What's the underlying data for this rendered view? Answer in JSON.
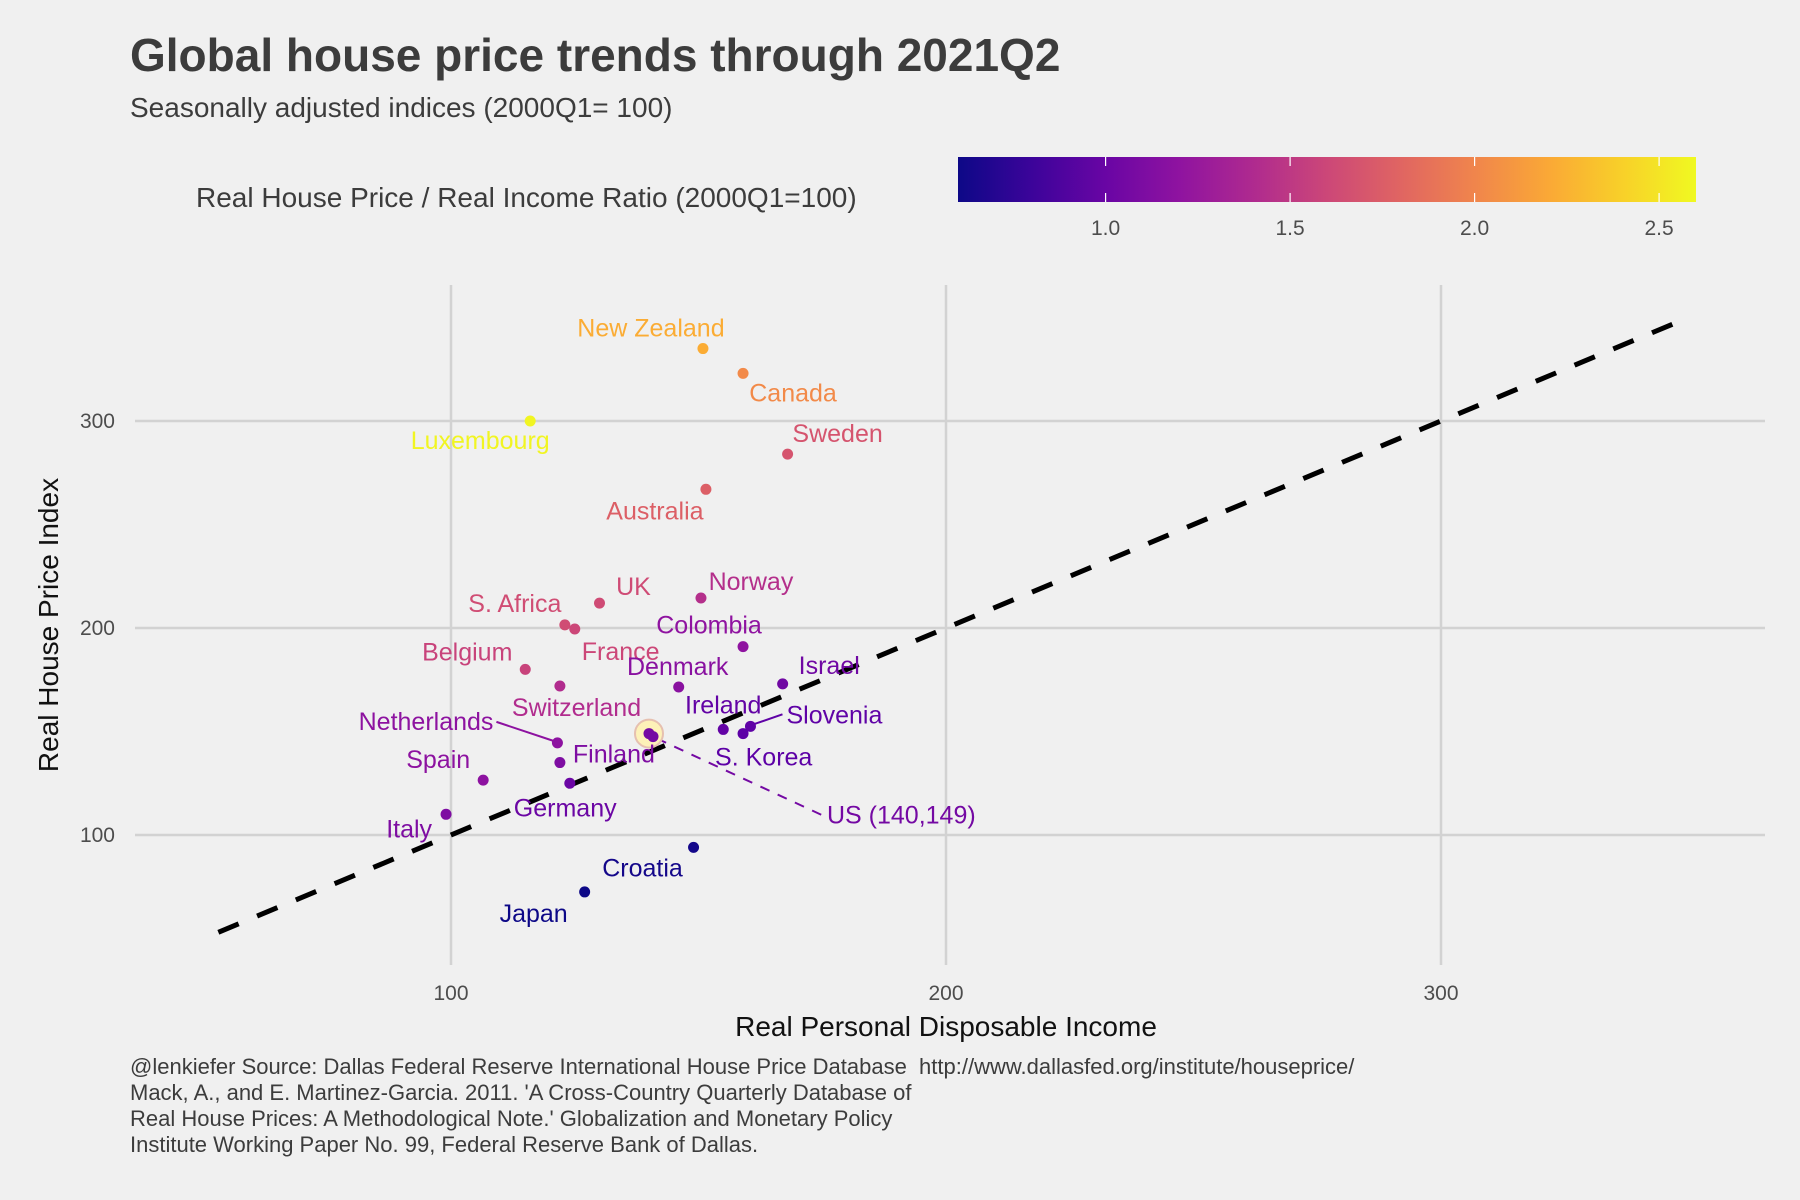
{
  "title": "Global house price trends through 2021Q2",
  "subtitle": "Seasonally adjusted indices (2000Q1= 100)",
  "caption": [
    "@lenkiefer Source: Dallas Federal Reserve International House Price Database  http://www.dallasfed.org/institute/houseprice/",
    "Mack, A., and E. Martinez-Garcia. 2011. 'A Cross-Country Quarterly Database of",
    "Real House Prices: A Methodological Note.' Globalization and Monetary Policy",
    "Institute Working Paper No. 99, Federal Reserve Bank of Dallas."
  ],
  "chart_data": {
    "type": "scatter",
    "title": "Global house price trends through 2021Q2",
    "subtitle": "Seasonally adjusted indices (2000Q1= 100)",
    "xlabel": "Real Personal Disposable Income",
    "ylabel": "Real House Price Index",
    "xlim": [
      35,
      355
    ],
    "ylim": [
      35,
      347
    ],
    "xticks": [
      100,
      200,
      300
    ],
    "yticks": [
      100,
      200,
      300
    ],
    "grid": true,
    "reference_line": {
      "type": "y=x",
      "style": "dashed",
      "color": "#000000",
      "range": [
        53,
        347
      ]
    },
    "color_scale": {
      "title": "Real House Price / Real Income Ratio (2000Q1=100)",
      "palette": "plasma",
      "range": [
        0.6,
        2.6
      ],
      "ticks": [
        1.0,
        1.5,
        2.0,
        2.5
      ],
      "tick_labels": [
        "1.0",
        "1.5",
        "2.0",
        "2.5"
      ],
      "stops": [
        "#0d0887",
        "#5c01a6",
        "#9c179e",
        "#cc4778",
        "#ed7953",
        "#fdb42f",
        "#f0f921"
      ],
      "placement": "top"
    },
    "points": [
      {
        "country": "New Zealand",
        "x": 150.9,
        "y": 335,
        "ratio": 2.22,
        "label_pos": "above-left"
      },
      {
        "country": "Canada",
        "x": 159,
        "y": 323,
        "ratio": 2.03,
        "label_pos": "below-right"
      },
      {
        "country": "Luxembourg",
        "x": 116,
        "y": 300,
        "ratio": 2.58,
        "label_pos": "below-left"
      },
      {
        "country": "Sweden",
        "x": 168,
        "y": 284,
        "ratio": 1.69,
        "label_pos": "above-right"
      },
      {
        "country": "Australia",
        "x": 151.5,
        "y": 267,
        "ratio": 1.76,
        "label_pos": "below-left"
      },
      {
        "country": "UK",
        "x": 130,
        "y": 212,
        "ratio": 1.63,
        "label_pos": "above-right"
      },
      {
        "country": "Norway",
        "x": 150.5,
        "y": 214.5,
        "ratio": 1.43,
        "label_pos": "above-right"
      },
      {
        "country": "S. Africa",
        "x": 123,
        "y": 201.5,
        "ratio": 1.64,
        "label_pos": "above-left"
      },
      {
        "country": "France",
        "x": 125,
        "y": 199.5,
        "ratio": 1.6,
        "label_pos": "below-right"
      },
      {
        "country": "Colombia",
        "x": 159,
        "y": 191,
        "ratio": 1.2,
        "label_pos": "above-left"
      },
      {
        "country": "Belgium",
        "x": 115,
        "y": 180,
        "ratio": 1.57,
        "label_pos": "above-left"
      },
      {
        "country": "Switzerland",
        "x": 122,
        "y": 172,
        "ratio": 1.41,
        "label_pos": "below-right"
      },
      {
        "country": "Denmark",
        "x": 146,
        "y": 171.5,
        "ratio": 1.17,
        "label_pos": "above"
      },
      {
        "country": "Israel",
        "x": 167,
        "y": 173,
        "ratio": 1.04,
        "label_pos": "right"
      },
      {
        "country": "Ireland",
        "x": 155,
        "y": 151,
        "ratio": 0.97,
        "label_pos": "above"
      },
      {
        "country": "Slovenia",
        "x": 160.5,
        "y": 152.5,
        "ratio": 0.95,
        "label_pos": "right-leader"
      },
      {
        "country": "S. Korea",
        "x": 159,
        "y": 149,
        "ratio": 0.94,
        "label_pos": "below"
      },
      {
        "country": "Netherlands",
        "x": 121.5,
        "y": 144.5,
        "ratio": 1.19,
        "label_pos": "left-leader"
      },
      {
        "country": "Finland",
        "x": 122,
        "y": 135,
        "ratio": 1.11,
        "label_pos": "right"
      },
      {
        "country": "US",
        "x": 140,
        "y": 149,
        "ratio": 1.06,
        "label": "US (140,149)",
        "highlight": true,
        "label_pos": "leader-dashed"
      },
      {
        "country": "Spain",
        "x": 106.5,
        "y": 126.5,
        "ratio": 1.19,
        "label_pos": "above-left"
      },
      {
        "country": "Germany",
        "x": 124,
        "y": 125,
        "ratio": 1.01,
        "label_pos": "below-right"
      },
      {
        "country": "Italy",
        "x": 99,
        "y": 110,
        "ratio": 1.11,
        "label_pos": "below-left"
      },
      {
        "country": "Croatia",
        "x": 149,
        "y": 94,
        "ratio": 0.63,
        "label_pos": "below-left"
      },
      {
        "country": "Japan",
        "x": 127,
        "y": 72.5,
        "ratio": 0.57,
        "label_pos": "below-left"
      }
    ]
  }
}
